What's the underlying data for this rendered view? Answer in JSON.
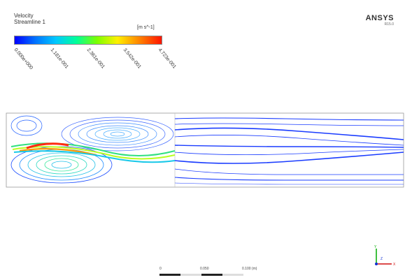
{
  "legend": {
    "title_line1": "Velocity",
    "title_line2": "Streamline 1",
    "units": "[m s^-1]",
    "ticks": [
      "0.000e+000",
      "1.181e-001",
      "2.361e-001",
      "3.542e-001",
      "4.723e-001"
    ]
  },
  "logo": {
    "brand": "ANSYS",
    "version": "R15.0"
  },
  "scale": {
    "labels": [
      "0",
      "0.050",
      "0.100 (m)"
    ]
  },
  "axes": {
    "x": "X",
    "y": "Y",
    "z": "Z"
  }
}
